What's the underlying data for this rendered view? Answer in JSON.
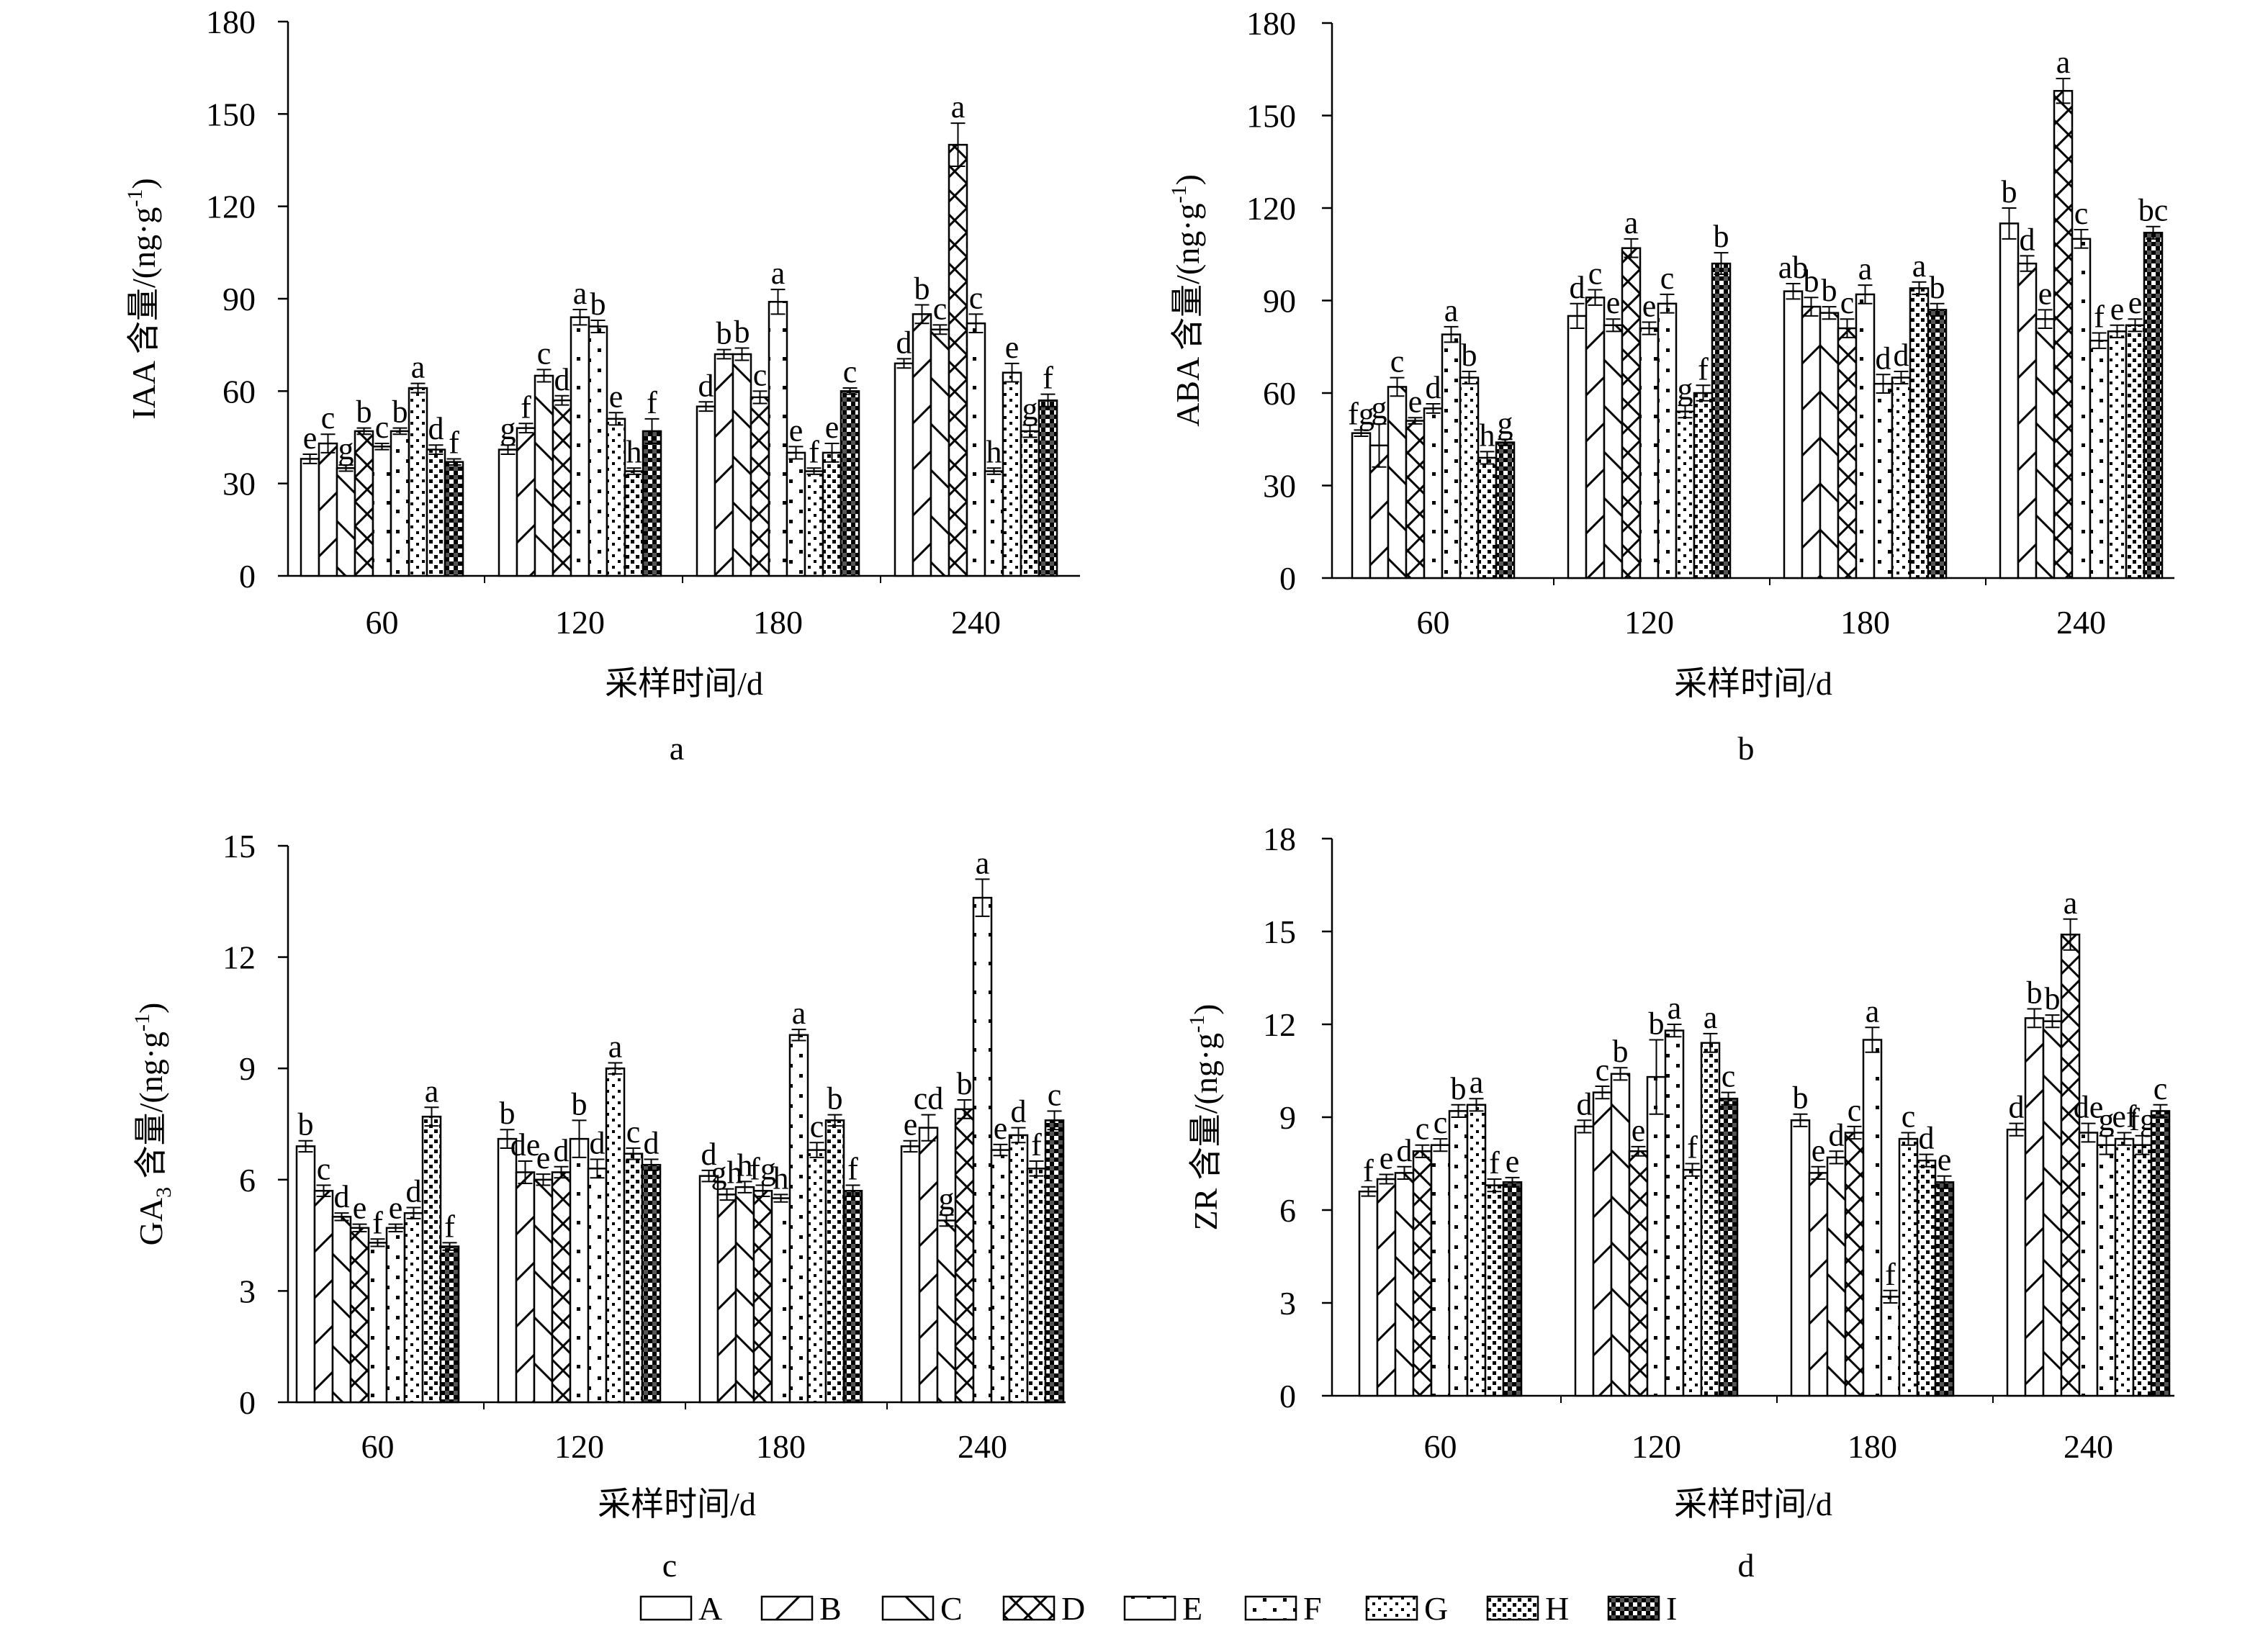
{
  "legend_items": [
    {
      "label": "A",
      "pattern": "pat-A"
    },
    {
      "label": "B",
      "pattern": "pat-B"
    },
    {
      "label": "C",
      "pattern": "pat-C"
    },
    {
      "label": "D",
      "pattern": "pat-D"
    },
    {
      "label": "E",
      "pattern": "pat-E"
    },
    {
      "label": "F",
      "pattern": "pat-F"
    },
    {
      "label": "G",
      "pattern": "pat-G"
    },
    {
      "label": "H",
      "pattern": "pat-H"
    },
    {
      "label": "I",
      "pattern": "pat-I"
    }
  ],
  "chart_data": [
    {
      "type": "bar",
      "panel_label": "a",
      "title": "",
      "xlabel": "采样时间/d",
      "ylabel_main": "IAA 含量/(ng·g",
      "ylabel_sup": "-1",
      "ylabel_end": ")",
      "ylim": [
        0,
        180
      ],
      "yticks": [
        0,
        30,
        60,
        90,
        120,
        150,
        180
      ],
      "grid": false,
      "legend_position": "bottom",
      "categories": [
        "60",
        "120",
        "180",
        "240"
      ],
      "series": [
        {
          "name": "A",
          "values": [
            38,
            41,
            55,
            69
          ],
          "errors": [
            1.5,
            1.5,
            1.5,
            1.5
          ],
          "letters": [
            "e",
            "g",
            "d",
            "d"
          ]
        },
        {
          "name": "B",
          "values": [
            43,
            48,
            72,
            85
          ],
          "errors": [
            3,
            1.5,
            1.5,
            3
          ],
          "letters": [
            "c",
            "f",
            "b",
            "b"
          ]
        },
        {
          "name": "C",
          "values": [
            35,
            65,
            72,
            80
          ],
          "errors": [
            1,
            2,
            2,
            1.5
          ],
          "letters": [
            "g",
            "c",
            "b",
            "c"
          ]
        },
        {
          "name": "D",
          "values": [
            47,
            57,
            58,
            140
          ],
          "errors": [
            1,
            1.5,
            2,
            7
          ],
          "letters": [
            "b",
            "d",
            "c",
            "a"
          ]
        },
        {
          "name": "E",
          "values": [
            42,
            84,
            89,
            82
          ],
          "errors": [
            1,
            2.5,
            4,
            3
          ],
          "letters": [
            "c",
            "a",
            "a",
            "c"
          ]
        },
        {
          "name": "F",
          "values": [
            47,
            81,
            40,
            34
          ],
          "errors": [
            1,
            2,
            2,
            1
          ],
          "letters": [
            "b",
            "b",
            "e",
            "h"
          ]
        },
        {
          "name": "G",
          "values": [
            61,
            51,
            34,
            66
          ],
          "errors": [
            1.5,
            2,
            1,
            3
          ],
          "letters": [
            "a",
            "e",
            "f",
            "e"
          ]
        },
        {
          "name": "H",
          "values": [
            41,
            34,
            40,
            47
          ],
          "errors": [
            1.5,
            1,
            3,
            2
          ],
          "letters": [
            "d",
            "h",
            "e",
            "g"
          ]
        },
        {
          "name": "I",
          "values": [
            37,
            47,
            60,
            57
          ],
          "errors": [
            1,
            4,
            1,
            2
          ],
          "letters": [
            "f",
            "f",
            "c",
            "f"
          ]
        }
      ]
    },
    {
      "type": "bar",
      "panel_label": "b",
      "title": "",
      "xlabel": "采样时间/d",
      "ylabel_main": "ABA 含量/(ng·g",
      "ylabel_sup": "-1",
      "ylabel_end": ")",
      "ylim": [
        0,
        180
      ],
      "yticks": [
        0,
        30,
        60,
        90,
        120,
        150,
        180
      ],
      "grid": false,
      "legend_position": "bottom",
      "categories": [
        "60",
        "120",
        "180",
        "240"
      ],
      "series": [
        {
          "name": "A",
          "values": [
            47,
            85,
            93,
            115
          ],
          "errors": [
            1,
            4,
            2.5,
            5
          ],
          "letters": [
            "fg",
            "d",
            "ab",
            "b"
          ]
        },
        {
          "name": "B",
          "values": [
            43,
            91,
            88,
            102
          ],
          "errors": [
            7,
            2.5,
            3,
            2.5
          ],
          "letters": [
            "g",
            "c",
            "b",
            "d"
          ]
        },
        {
          "name": "C",
          "values": [
            62,
            82,
            86,
            84
          ],
          "errors": [
            3,
            2,
            2,
            3
          ],
          "letters": [
            "c",
            "e",
            "b",
            "e"
          ]
        },
        {
          "name": "D",
          "values": [
            51,
            107,
            81,
            158
          ],
          "errors": [
            1,
            3,
            3,
            4
          ],
          "letters": [
            "e",
            "a",
            "c",
            "a"
          ]
        },
        {
          "name": "E",
          "values": [
            55,
            81,
            92,
            110
          ],
          "errors": [
            1.5,
            2,
            3,
            3
          ],
          "letters": [
            "d",
            "e",
            "a",
            "c"
          ]
        },
        {
          "name": "F",
          "values": [
            79,
            89,
            63,
            77
          ],
          "errors": [
            2.5,
            3,
            3,
            2.5
          ],
          "letters": [
            "a",
            "c",
            "d",
            "f"
          ]
        },
        {
          "name": "G",
          "values": [
            65,
            54,
            65,
            80
          ],
          "errors": [
            2,
            2,
            2,
            2
          ],
          "letters": [
            "b",
            "g",
            "d",
            "e"
          ]
        },
        {
          "name": "H",
          "values": [
            39,
            60,
            94,
            82
          ],
          "errors": [
            2,
            2.5,
            2,
            2
          ],
          "letters": [
            "h",
            "f",
            "a",
            "e"
          ]
        },
        {
          "name": "I",
          "values": [
            44,
            102,
            87,
            112
          ],
          "errors": [
            1,
            3.5,
            2,
            2
          ],
          "letters": [
            "g",
            "b",
            "b",
            "bc"
          ]
        }
      ]
    },
    {
      "type": "bar",
      "panel_label": "c",
      "title": "",
      "xlabel": "采样时间/d",
      "ylabel_main": "GA",
      "ylabel_sub": "3",
      "ylabel_rest": " 含量/(ng·g",
      "ylabel_sup": "-1",
      "ylabel_end": ")",
      "ylim": [
        0,
        15
      ],
      "yticks": [
        0,
        3,
        6,
        9,
        12,
        15
      ],
      "grid": false,
      "legend_position": "bottom",
      "categories": [
        "60",
        "120",
        "180",
        "240"
      ],
      "series": [
        {
          "name": "A",
          "values": [
            6.9,
            7.1,
            6.1,
            6.9
          ],
          "errors": [
            0.15,
            0.25,
            0.15,
            0.15
          ],
          "letters": [
            "b",
            "b",
            "d",
            "e"
          ]
        },
        {
          "name": "B",
          "values": [
            5.7,
            6.2,
            5.6,
            7.4
          ],
          "errors": [
            0.15,
            0.3,
            0.15,
            0.35
          ],
          "letters": [
            "c",
            "de",
            "gh",
            "cd"
          ]
        },
        {
          "name": "C",
          "values": [
            5.0,
            6.0,
            5.8,
            4.9
          ],
          "errors": [
            0.1,
            0.15,
            0.15,
            0.15
          ],
          "letters": [
            "d",
            "e",
            "h",
            "g"
          ]
        },
        {
          "name": "D",
          "values": [
            4.7,
            6.2,
            5.7,
            7.9
          ],
          "errors": [
            0.1,
            0.15,
            0.15,
            0.25
          ],
          "letters": [
            "e",
            "d",
            "fg",
            "b"
          ]
        },
        {
          "name": "E",
          "values": [
            4.3,
            7.1,
            5.5,
            13.6
          ],
          "errors": [
            0.1,
            0.5,
            0.1,
            0.5
          ],
          "letters": [
            "f",
            "b",
            "h",
            "a"
          ]
        },
        {
          "name": "F",
          "values": [
            4.7,
            6.3,
            9.9,
            6.8
          ],
          "errors": [
            0.1,
            0.25,
            0.15,
            0.15
          ],
          "letters": [
            "e",
            "d",
            "a",
            "e"
          ]
        },
        {
          "name": "G",
          "values": [
            5.1,
            9.0,
            6.8,
            7.2
          ],
          "errors": [
            0.15,
            0.15,
            0.2,
            0.2
          ],
          "letters": [
            "d",
            "a",
            "c",
            "d"
          ]
        },
        {
          "name": "H",
          "values": [
            7.7,
            6.7,
            7.6,
            6.3
          ],
          "errors": [
            0.25,
            0.15,
            0.15,
            0.2
          ],
          "letters": [
            "a",
            "c",
            "b",
            "f"
          ]
        },
        {
          "name": "I",
          "values": [
            4.2,
            6.4,
            5.7,
            7.6
          ],
          "errors": [
            0.1,
            0.15,
            0.15,
            0.25
          ],
          "letters": [
            "f",
            "d",
            "f",
            "c"
          ]
        }
      ]
    },
    {
      "type": "bar",
      "panel_label": "d",
      "title": "",
      "xlabel": "采样时间/d",
      "ylabel_main": "ZR 含量/(ng·g",
      "ylabel_sup": "-1",
      "ylabel_end": ")",
      "ylim": [
        0,
        18
      ],
      "yticks": [
        0,
        3,
        6,
        9,
        12,
        15,
        18
      ],
      "grid": false,
      "legend_position": "bottom",
      "categories": [
        "60",
        "120",
        "180",
        "240"
      ],
      "series": [
        {
          "name": "A",
          "values": [
            6.6,
            8.7,
            8.9,
            8.6
          ],
          "errors": [
            0.15,
            0.2,
            0.2,
            0.2
          ],
          "letters": [
            "f",
            "d",
            "b",
            "d"
          ]
        },
        {
          "name": "B",
          "values": [
            7.0,
            9.8,
            7.2,
            12.2
          ],
          "errors": [
            0.15,
            0.2,
            0.2,
            0.3
          ],
          "letters": [
            "e",
            "c",
            "e",
            "b"
          ]
        },
        {
          "name": "C",
          "values": [
            7.2,
            10.4,
            7.7,
            12.1
          ],
          "errors": [
            0.2,
            0.2,
            0.2,
            0.2
          ],
          "letters": [
            "d",
            "b",
            "d",
            "b"
          ]
        },
        {
          "name": "D",
          "values": [
            7.9,
            7.9,
            8.5,
            14.9
          ],
          "errors": [
            0.2,
            0.15,
            0.2,
            0.5
          ],
          "letters": [
            "c",
            "e",
            "c",
            "a"
          ]
        },
        {
          "name": "E",
          "values": [
            8.1,
            10.3,
            11.5,
            8.5
          ],
          "errors": [
            0.2,
            1.2,
            0.4,
            0.3
          ],
          "letters": [
            "c",
            "b",
            "a",
            "de"
          ]
        },
        {
          "name": "F",
          "values": [
            9.2,
            11.8,
            3.2,
            8.1
          ],
          "errors": [
            0.2,
            0.2,
            0.2,
            0.3
          ],
          "letters": [
            "b",
            "a",
            "f",
            "g"
          ]
        },
        {
          "name": "G",
          "values": [
            9.4,
            7.3,
            8.3,
            8.3
          ],
          "errors": [
            0.2,
            0.2,
            0.2,
            0.2
          ],
          "letters": [
            "a",
            "f",
            "c",
            "ef"
          ]
        },
        {
          "name": "H",
          "values": [
            6.8,
            11.4,
            7.6,
            8.1
          ],
          "errors": [
            0.2,
            0.3,
            0.2,
            0.3
          ],
          "letters": [
            "f",
            "a",
            "d",
            "fg"
          ]
        },
        {
          "name": "I",
          "values": [
            6.9,
            9.6,
            6.9,
            9.2
          ],
          "errors": [
            0.15,
            0.2,
            0.2,
            0.2
          ],
          "letters": [
            "e",
            "c",
            "e",
            "c"
          ]
        }
      ]
    }
  ]
}
